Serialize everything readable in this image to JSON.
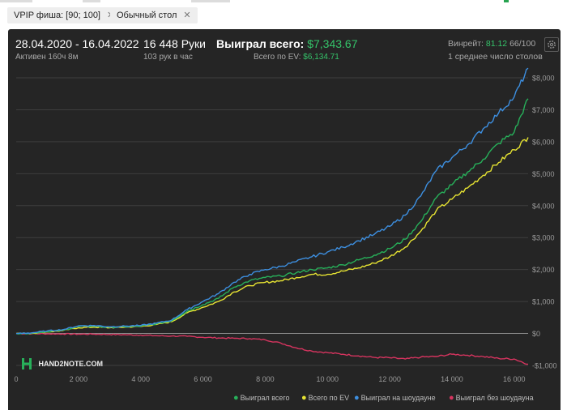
{
  "filters": [
    {
      "label": "VPIP фиша: [90; 100]",
      "close": "✕"
    },
    {
      "label": "Обычный стол",
      "close": "✕"
    }
  ],
  "summary": {
    "date_range": "28.04.2020 - 16.04.2022",
    "active": "Активен 160ч 8м",
    "hands": "16 448 Руки",
    "hands_per_hour": "103 рук в час",
    "won_label": "Выиграл всего:",
    "won_value": "$7,343.67",
    "ev_label": "Всего по EV:",
    "ev_value": "$6,134.71",
    "winrate_label": "Винрейт:",
    "winrate_value": "81.12",
    "winrate_rest": "66/100",
    "tables": "1 среднее число столов"
  },
  "logo": "HAND2NOTE.COM",
  "colors": {
    "panel": "#252525",
    "won_total": "#27b05a",
    "by_ev": "#e6e332",
    "showdown": "#3d8fe0",
    "no_showdown": "#d6345f"
  },
  "chart_data": {
    "type": "line",
    "xlim": [
      0,
      16448
    ],
    "ylim": [
      -1000,
      8000
    ],
    "xticks": [
      0,
      2000,
      4000,
      6000,
      8000,
      10000,
      12000,
      14000,
      16000
    ],
    "xtick_labels": [
      "0",
      "2 000",
      "4 000",
      "6 000",
      "8 000",
      "10 000",
      "12 000",
      "14 000",
      "16 000"
    ],
    "yticks": [
      -1000,
      0,
      1000,
      2000,
      3000,
      4000,
      5000,
      6000,
      7000,
      8000
    ],
    "ytick_labels": [
      "-$1,000",
      "$0",
      "$1,000",
      "$2,000",
      "$3,000",
      "$4,000",
      "$5,000",
      "$6,000",
      "$7,000",
      "$8,000"
    ],
    "grid": "horizontal",
    "legend_position": "bottom-right",
    "x": [
      0,
      500,
      1000,
      1500,
      2000,
      2500,
      3000,
      3500,
      4000,
      4500,
      5000,
      5500,
      6000,
      6500,
      7000,
      7500,
      8000,
      8500,
      9000,
      9500,
      10000,
      10500,
      11000,
      11500,
      12000,
      12500,
      13000,
      13500,
      14000,
      14500,
      15000,
      15500,
      16000,
      16448
    ],
    "series": [
      {
        "name": "Выиграл всего",
        "color": "#27b05a",
        "values": [
          0,
          10,
          60,
          100,
          220,
          230,
          190,
          210,
          230,
          300,
          400,
          700,
          900,
          1100,
          1450,
          1650,
          1750,
          1800,
          1900,
          2000,
          2050,
          2150,
          2300,
          2450,
          2650,
          2950,
          3500,
          4250,
          4650,
          5050,
          5450,
          5950,
          6300,
          7344
        ]
      },
      {
        "name": "Всего по EV",
        "color": "#e6e332",
        "values": [
          0,
          5,
          50,
          90,
          180,
          200,
          180,
          200,
          220,
          280,
          370,
          650,
          820,
          1000,
          1300,
          1500,
          1600,
          1650,
          1750,
          1850,
          1850,
          1950,
          2050,
          2200,
          2400,
          2700,
          3200,
          3850,
          4200,
          4550,
          4950,
          5350,
          5750,
          6135
        ]
      },
      {
        "name": "Выиграл на шоудауне",
        "color": "#3d8fe0",
        "values": [
          0,
          20,
          80,
          120,
          240,
          250,
          210,
          230,
          250,
          320,
          420,
          750,
          1000,
          1250,
          1600,
          1850,
          2000,
          2100,
          2250,
          2400,
          2550,
          2700,
          2900,
          3100,
          3350,
          3700,
          4300,
          5100,
          5500,
          5900,
          6400,
          6900,
          7400,
          8300
        ]
      },
      {
        "name": "Выиграл без шоудауна",
        "color": "#d6345f",
        "values": [
          0,
          -5,
          -10,
          -15,
          -20,
          -20,
          -30,
          -40,
          -50,
          -70,
          -80,
          -90,
          -120,
          -140,
          -150,
          -160,
          -200,
          -300,
          -450,
          -550,
          -600,
          -650,
          -700,
          -750,
          -760,
          -800,
          -740,
          -720,
          -650,
          -680,
          -720,
          -780,
          -800,
          -960
        ]
      }
    ]
  }
}
